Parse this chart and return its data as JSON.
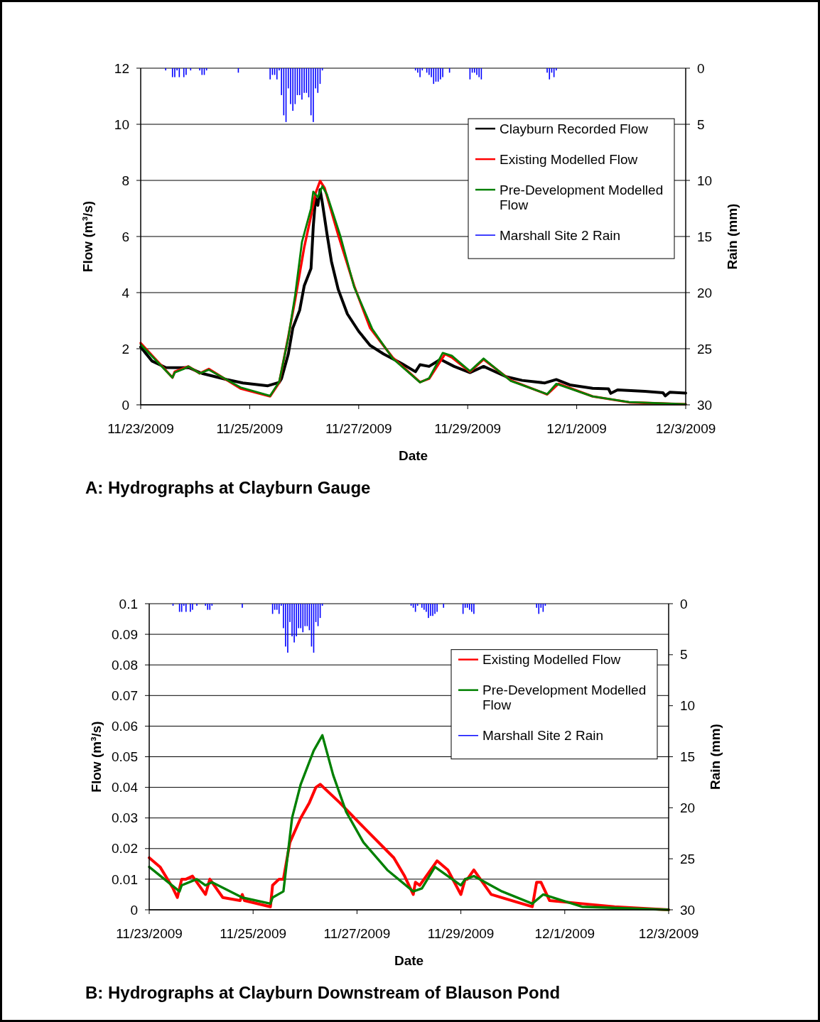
{
  "chart_data": [
    {
      "type": "line",
      "title": "A: Hydrographs at Clayburn Gauge",
      "xlabel": "Date",
      "ylabel": "Flow (m³/s)",
      "y2label": "Rain (mm)",
      "xlim": [
        "2009-11-23",
        "2009-12-03"
      ],
      "xticks": [
        {
          "value": "2009-11-23",
          "label": "11/23/2009"
        },
        {
          "value": "2009-11-25",
          "label": "11/25/2009"
        },
        {
          "value": "2009-11-27",
          "label": "11/27/2009"
        },
        {
          "value": "2009-11-29",
          "label": "11/29/2009"
        },
        {
          "value": "2009-12-01",
          "label": "12/1/2009"
        },
        {
          "value": "2009-12-03",
          "label": "12/3/2009"
        }
      ],
      "ylim": [
        0,
        12
      ],
      "yticks": [
        0,
        2,
        4,
        6,
        8,
        10,
        12
      ],
      "y2lim": [
        30,
        0
      ],
      "y2ticks": [
        0,
        5,
        10,
        15,
        20,
        25,
        30
      ],
      "grid": "y",
      "legend": "top right",
      "series": [
        {
          "name": "Clayburn Recorded Flow",
          "color": "#000000",
          "x": [
            "2009-11-23T00:00",
            "2009-11-23T05:00",
            "2009-11-23T11:00",
            "2009-11-23T18:00",
            "2009-11-23T21:00",
            "2009-11-24T03:00",
            "2009-11-24T14:00",
            "2009-11-24T21:00",
            "2009-11-25T08:00",
            "2009-11-25T13:00",
            "2009-11-25T14:00",
            "2009-11-25T17:00",
            "2009-11-25T19:00",
            "2009-11-25T22:00",
            "2009-11-26T00:00",
            "2009-11-26T03:00",
            "2009-11-26T04:00",
            "2009-11-26T05:00",
            "2009-11-26T06:00",
            "2009-11-26T07:00",
            "2009-11-26T08:00",
            "2009-11-26T10:00",
            "2009-11-26T12:00",
            "2009-11-26T15:00",
            "2009-11-26T19:00",
            "2009-11-27T00:00",
            "2009-11-27T05:00",
            "2009-11-27T11:00",
            "2009-11-27T19:00",
            "2009-11-28T01:00",
            "2009-11-28T03:00",
            "2009-11-28T07:00",
            "2009-11-28T12:00",
            "2009-11-28T18:00",
            "2009-11-29T01:00",
            "2009-11-29T07:00",
            "2009-11-29T17:00",
            "2009-11-30T00:00",
            "2009-11-30T10:00",
            "2009-11-30T15:00",
            "2009-11-30T21:00",
            "2009-12-01T07:00",
            "2009-12-01T14:00",
            "2009-12-01T15:00",
            "2009-12-01T18:00",
            "2009-12-02T06:00",
            "2009-12-02T14:00",
            "2009-12-02T15:00",
            "2009-12-02T17:00",
            "2009-12-03T00:00"
          ],
          "values": [
            2.06,
            1.56,
            1.33,
            1.32,
            1.33,
            1.12,
            0.9,
            0.78,
            0.68,
            0.8,
            0.93,
            1.81,
            2.74,
            3.37,
            4.24,
            4.86,
            6.36,
            7.36,
            7.11,
            7.67,
            7.2,
            6.11,
            5.11,
            4.11,
            3.24,
            2.62,
            2.12,
            1.81,
            1.47,
            1.18,
            1.43,
            1.37,
            1.62,
            1.37,
            1.15,
            1.37,
            1.0,
            0.87,
            0.78,
            0.9,
            0.71,
            0.59,
            0.57,
            0.41,
            0.53,
            0.48,
            0.43,
            0.32,
            0.45,
            0.42
          ]
        },
        {
          "name": "Existing Modelled Flow",
          "color": "#ff0000",
          "x": [
            "2009-11-23T00:00",
            "2009-11-23T14:00",
            "2009-11-23T15:00",
            "2009-11-23T21:00",
            "2009-11-24T02:00",
            "2009-11-24T06:00",
            "2009-11-24T20:00",
            "2009-11-25T09:00",
            "2009-11-25T13:00",
            "2009-11-25T17:00",
            "2009-11-25T20:00",
            "2009-11-26T00:00",
            "2009-11-26T03:00",
            "2009-11-26T05:00",
            "2009-11-26T07:00",
            "2009-11-26T09:00",
            "2009-11-26T15:00",
            "2009-11-26T22:00",
            "2009-11-27T05:00",
            "2009-11-27T15:00",
            "2009-11-28T03:00",
            "2009-11-28T07:00",
            "2009-11-28T14:00",
            "2009-11-28T17:00",
            "2009-11-29T01:00",
            "2009-11-29T07:00",
            "2009-11-29T19:00",
            "2009-11-30T11:00",
            "2009-11-30T16:00",
            "2009-12-01T07:00",
            "2009-12-01T23:00",
            "2009-12-03T00:00"
          ],
          "values": [
            2.2,
            0.97,
            1.18,
            1.37,
            1.12,
            1.28,
            0.58,
            0.3,
            0.79,
            2.43,
            3.74,
            5.61,
            6.73,
            7.54,
            7.98,
            7.73,
            6.05,
            4.24,
            2.74,
            1.68,
            0.81,
            0.93,
            1.81,
            1.69,
            1.18,
            1.62,
            0.87,
            0.37,
            0.75,
            0.3,
            0.09,
            0.02
          ]
        },
        {
          "name": "Pre-Development Modelled Flow",
          "color": "#008000",
          "x": [
            "2009-11-23T00:00",
            "2009-11-23T14:00",
            "2009-11-23T15:00",
            "2009-11-23T19:00",
            "2009-11-23T21:00",
            "2009-11-24T02:00",
            "2009-11-24T06:00",
            "2009-11-24T20:00",
            "2009-11-25T09:00",
            "2009-11-25T13:00",
            "2009-11-25T17:00",
            "2009-11-25T20:00",
            "2009-11-25T23:00",
            "2009-11-26T03:00",
            "2009-11-26T04:00",
            "2009-11-26T06:00",
            "2009-11-26T08:00",
            "2009-11-26T10:00",
            "2009-11-26T16:00",
            "2009-11-26T22:00",
            "2009-11-27T06:00",
            "2009-11-27T15:00",
            "2009-11-28T03:00",
            "2009-11-28T07:00",
            "2009-11-28T13:00",
            "2009-11-28T17:00",
            "2009-11-29T01:00",
            "2009-11-29T07:00",
            "2009-11-29T19:00",
            "2009-11-30T11:00",
            "2009-11-30T15:00",
            "2009-12-01T07:00",
            "2009-12-01T23:00",
            "2009-12-03T00:00"
          ],
          "values": [
            2.15,
            0.97,
            1.15,
            1.28,
            1.37,
            1.12,
            1.25,
            0.62,
            0.32,
            0.82,
            2.4,
            3.9,
            5.8,
            7.0,
            7.6,
            7.4,
            7.79,
            7.5,
            6.0,
            4.2,
            2.7,
            1.65,
            0.8,
            0.95,
            1.85,
            1.75,
            1.2,
            1.65,
            0.85,
            0.38,
            0.75,
            0.3,
            0.1,
            0.02
          ]
        },
        {
          "name": "Marshall Site 2 Rain",
          "color": "#0000ff",
          "type": "bar",
          "axis": "y2",
          "x": [
            "2009-11-23T11:00",
            "2009-11-23T14:00",
            "2009-11-23T15:00",
            "2009-11-23T16:00",
            "2009-11-23T17:00",
            "2009-11-23T19:00",
            "2009-11-23T20:00",
            "2009-11-23T22:00",
            "2009-11-24T02:00",
            "2009-11-24T03:00",
            "2009-11-24T04:00",
            "2009-11-24T05:00",
            "2009-11-24T19:00",
            "2009-11-25T09:00",
            "2009-11-25T10:00",
            "2009-11-25T11:00",
            "2009-11-25T12:00",
            "2009-11-25T13:00",
            "2009-11-25T14:00",
            "2009-11-25T15:00",
            "2009-11-25T16:00",
            "2009-11-25T17:00",
            "2009-11-25T18:00",
            "2009-11-25T19:00",
            "2009-11-25T20:00",
            "2009-11-25T21:00",
            "2009-11-25T22:00",
            "2009-11-25T23:00",
            "2009-11-26T00:00",
            "2009-11-26T01:00",
            "2009-11-26T02:00",
            "2009-11-26T03:00",
            "2009-11-26T04:00",
            "2009-11-26T05:00",
            "2009-11-26T06:00",
            "2009-11-26T07:00",
            "2009-11-26T08:00",
            "2009-11-28T01:00",
            "2009-11-28T02:00",
            "2009-11-28T03:00",
            "2009-11-28T04:00",
            "2009-11-28T06:00",
            "2009-11-28T07:00",
            "2009-11-28T08:00",
            "2009-11-28T09:00",
            "2009-11-28T10:00",
            "2009-11-28T11:00",
            "2009-11-28T12:00",
            "2009-11-28T13:00",
            "2009-11-28T16:00",
            "2009-11-29T01:00",
            "2009-11-29T02:00",
            "2009-11-29T03:00",
            "2009-11-29T04:00",
            "2009-11-29T05:00",
            "2009-11-29T06:00",
            "2009-11-30T11:00",
            "2009-11-30T12:00",
            "2009-11-30T13:00",
            "2009-11-30T14:00",
            "2009-11-30T15:00"
          ],
          "values": [
            0.2,
            0.8,
            0.8,
            0.2,
            0.8,
            0.8,
            0.6,
            0.2,
            0.2,
            0.6,
            0.6,
            0.2,
            0.4,
            1.0,
            0.6,
            0.6,
            1.0,
            0.2,
            2.4,
            4.2,
            4.8,
            1.8,
            3.2,
            3.8,
            3.2,
            2.4,
            2.4,
            2.8,
            2.2,
            2.2,
            2.6,
            4.2,
            4.8,
            1.8,
            2.2,
            1.4,
            0.2,
            0.2,
            0.4,
            0.8,
            0.2,
            0.4,
            0.6,
            0.8,
            1.4,
            1.2,
            1.2,
            1.0,
            0.8,
            0.4,
            1.0,
            0.4,
            0.4,
            0.6,
            0.8,
            1.0,
            0.4,
            1.0,
            0.4,
            0.8,
            0.2
          ]
        }
      ]
    },
    {
      "type": "line",
      "title": "B: Hydrographs at Clayburn Downstream of Blauson Pond",
      "xlabel": "Date",
      "ylabel": "Flow (m³/s)",
      "y2label": "Rain (mm)",
      "xlim": [
        "2009-11-23",
        "2009-12-03"
      ],
      "xticks": [
        {
          "value": "2009-11-23",
          "label": "11/23/2009"
        },
        {
          "value": "2009-11-25",
          "label": "11/25/2009"
        },
        {
          "value": "2009-11-27",
          "label": "11/27/2009"
        },
        {
          "value": "2009-11-29",
          "label": "11/29/2009"
        },
        {
          "value": "2009-12-01",
          "label": "12/1/2009"
        },
        {
          "value": "2009-12-03",
          "label": "12/3/2009"
        }
      ],
      "ylim": [
        0,
        0.1
      ],
      "yticks": [
        0,
        0.01,
        0.02,
        0.03,
        0.04,
        0.05,
        0.06,
        0.07,
        0.08,
        0.09,
        0.1
      ],
      "y2lim": [
        30,
        0
      ],
      "y2ticks": [
        0,
        5,
        10,
        15,
        20,
        25,
        30
      ],
      "grid": "y",
      "legend": "top right",
      "series": [
        {
          "name": "Existing Modelled Flow",
          "color": "#ff0000",
          "x": [
            "2009-11-23T00:00",
            "2009-11-23T05:00",
            "2009-11-23T11:00",
            "2009-11-23T13:00",
            "2009-11-23T15:00",
            "2009-11-23T17:00",
            "2009-11-23T20:00",
            "2009-11-24T02:00",
            "2009-11-24T04:00",
            "2009-11-24T10:00",
            "2009-11-24T18:00",
            "2009-11-24T19:00",
            "2009-11-24T20:00",
            "2009-11-25T08:00",
            "2009-11-25T09:00",
            "2009-11-25T12:00",
            "2009-11-25T14:00",
            "2009-11-25T17:00",
            "2009-11-25T22:00",
            "2009-11-26T02:00",
            "2009-11-26T05:00",
            "2009-11-26T07:00",
            "2009-11-26T16:00",
            "2009-11-27T03:00",
            "2009-11-27T17:00",
            "2009-11-27T22:00",
            "2009-11-28T02:00",
            "2009-11-28T03:00",
            "2009-11-28T05:00",
            "2009-11-28T08:00",
            "2009-11-28T13:00",
            "2009-11-28T18:00",
            "2009-11-29T00:00",
            "2009-11-29T02:00",
            "2009-11-29T03:00",
            "2009-11-29T06:00",
            "2009-11-29T14:00",
            "2009-11-30T09:00",
            "2009-11-30T11:00",
            "2009-11-30T13:00",
            "2009-11-30T17:00",
            "2009-12-01T08:00",
            "2009-12-01T23:00",
            "2009-12-03T00:00"
          ],
          "values": [
            0.017,
            0.014,
            0.007,
            0.004,
            0.01,
            0.01,
            0.011,
            0.005,
            0.01,
            0.004,
            0.003,
            0.005,
            0.003,
            0.001,
            0.008,
            0.01,
            0.01,
            0.022,
            0.03,
            0.035,
            0.04,
            0.041,
            0.035,
            0.027,
            0.017,
            0.011,
            0.005,
            0.009,
            0.008,
            0.011,
            0.016,
            0.013,
            0.005,
            0.01,
            0.01,
            0.013,
            0.005,
            0.001,
            0.009,
            0.009,
            0.003,
            0.002,
            0.001,
            0
          ]
        },
        {
          "name": "Pre-Development Modelled Flow",
          "color": "#008000",
          "x": [
            "2009-11-23T00:00",
            "2009-11-23T14:00",
            "2009-11-23T15:00",
            "2009-11-23T22:00",
            "2009-11-24T02:00",
            "2009-11-24T05:00",
            "2009-11-24T19:00",
            "2009-11-25T08:00",
            "2009-11-25T09:00",
            "2009-11-25T14:00",
            "2009-11-25T18:00",
            "2009-11-25T22:00",
            "2009-11-26T04:00",
            "2009-11-26T08:00",
            "2009-11-26T13:00",
            "2009-11-26T19:00",
            "2009-11-27T03:00",
            "2009-11-27T14:00",
            "2009-11-28T02:00",
            "2009-11-28T06:00",
            "2009-11-28T12:00",
            "2009-11-29T00:00",
            "2009-11-29T02:00",
            "2009-11-29T06:00",
            "2009-11-29T19:00",
            "2009-11-30T09:00",
            "2009-11-30T14:00",
            "2009-12-01T08:00",
            "2009-12-03T00:00"
          ],
          "values": [
            0.014,
            0.006,
            0.008,
            0.01,
            0.008,
            0.009,
            0.004,
            0.002,
            0.004,
            0.006,
            0.03,
            0.041,
            0.052,
            0.057,
            0.044,
            0.032,
            0.022,
            0.013,
            0.006,
            0.007,
            0.014,
            0.008,
            0.01,
            0.011,
            0.006,
            0.002,
            0.005,
            0.001,
            0
          ]
        },
        {
          "name": "Marshall Site 2 Rain",
          "color": "#0000ff",
          "type": "bar",
          "axis": "y2",
          "x": [
            "2009-11-23T11:00",
            "2009-11-23T14:00",
            "2009-11-23T15:00",
            "2009-11-23T16:00",
            "2009-11-23T17:00",
            "2009-11-23T19:00",
            "2009-11-23T20:00",
            "2009-11-23T22:00",
            "2009-11-24T02:00",
            "2009-11-24T03:00",
            "2009-11-24T04:00",
            "2009-11-24T05:00",
            "2009-11-24T19:00",
            "2009-11-25T09:00",
            "2009-11-25T10:00",
            "2009-11-25T11:00",
            "2009-11-25T12:00",
            "2009-11-25T13:00",
            "2009-11-25T14:00",
            "2009-11-25T15:00",
            "2009-11-25T16:00",
            "2009-11-25T17:00",
            "2009-11-25T18:00",
            "2009-11-25T19:00",
            "2009-11-25T20:00",
            "2009-11-25T21:00",
            "2009-11-25T22:00",
            "2009-11-25T23:00",
            "2009-11-26T00:00",
            "2009-11-26T01:00",
            "2009-11-26T02:00",
            "2009-11-26T03:00",
            "2009-11-26T04:00",
            "2009-11-26T05:00",
            "2009-11-26T06:00",
            "2009-11-26T07:00",
            "2009-11-26T08:00",
            "2009-11-28T01:00",
            "2009-11-28T02:00",
            "2009-11-28T03:00",
            "2009-11-28T04:00",
            "2009-11-28T06:00",
            "2009-11-28T07:00",
            "2009-11-28T08:00",
            "2009-11-28T09:00",
            "2009-11-28T10:00",
            "2009-11-28T11:00",
            "2009-11-28T12:00",
            "2009-11-28T13:00",
            "2009-11-28T16:00",
            "2009-11-29T01:00",
            "2009-11-29T02:00",
            "2009-11-29T03:00",
            "2009-11-29T04:00",
            "2009-11-29T05:00",
            "2009-11-29T06:00",
            "2009-11-30T11:00",
            "2009-11-30T12:00",
            "2009-11-30T13:00",
            "2009-11-30T14:00",
            "2009-11-30T15:00"
          ],
          "values": [
            0.2,
            0.8,
            0.8,
            0.2,
            0.8,
            0.8,
            0.6,
            0.2,
            0.2,
            0.6,
            0.6,
            0.2,
            0.4,
            1.0,
            0.6,
            0.6,
            1.0,
            0.2,
            2.4,
            4.2,
            4.8,
            1.8,
            3.2,
            3.8,
            3.2,
            2.4,
            2.4,
            2.8,
            2.2,
            2.2,
            2.6,
            4.2,
            4.8,
            1.8,
            2.2,
            1.4,
            0.2,
            0.2,
            0.4,
            0.8,
            0.2,
            0.4,
            0.6,
            0.8,
            1.4,
            1.2,
            1.2,
            1.0,
            0.8,
            0.4,
            1.0,
            0.4,
            0.4,
            0.6,
            0.8,
            1.0,
            0.4,
            1.0,
            0.4,
            0.8,
            0.2
          ]
        }
      ]
    }
  ]
}
